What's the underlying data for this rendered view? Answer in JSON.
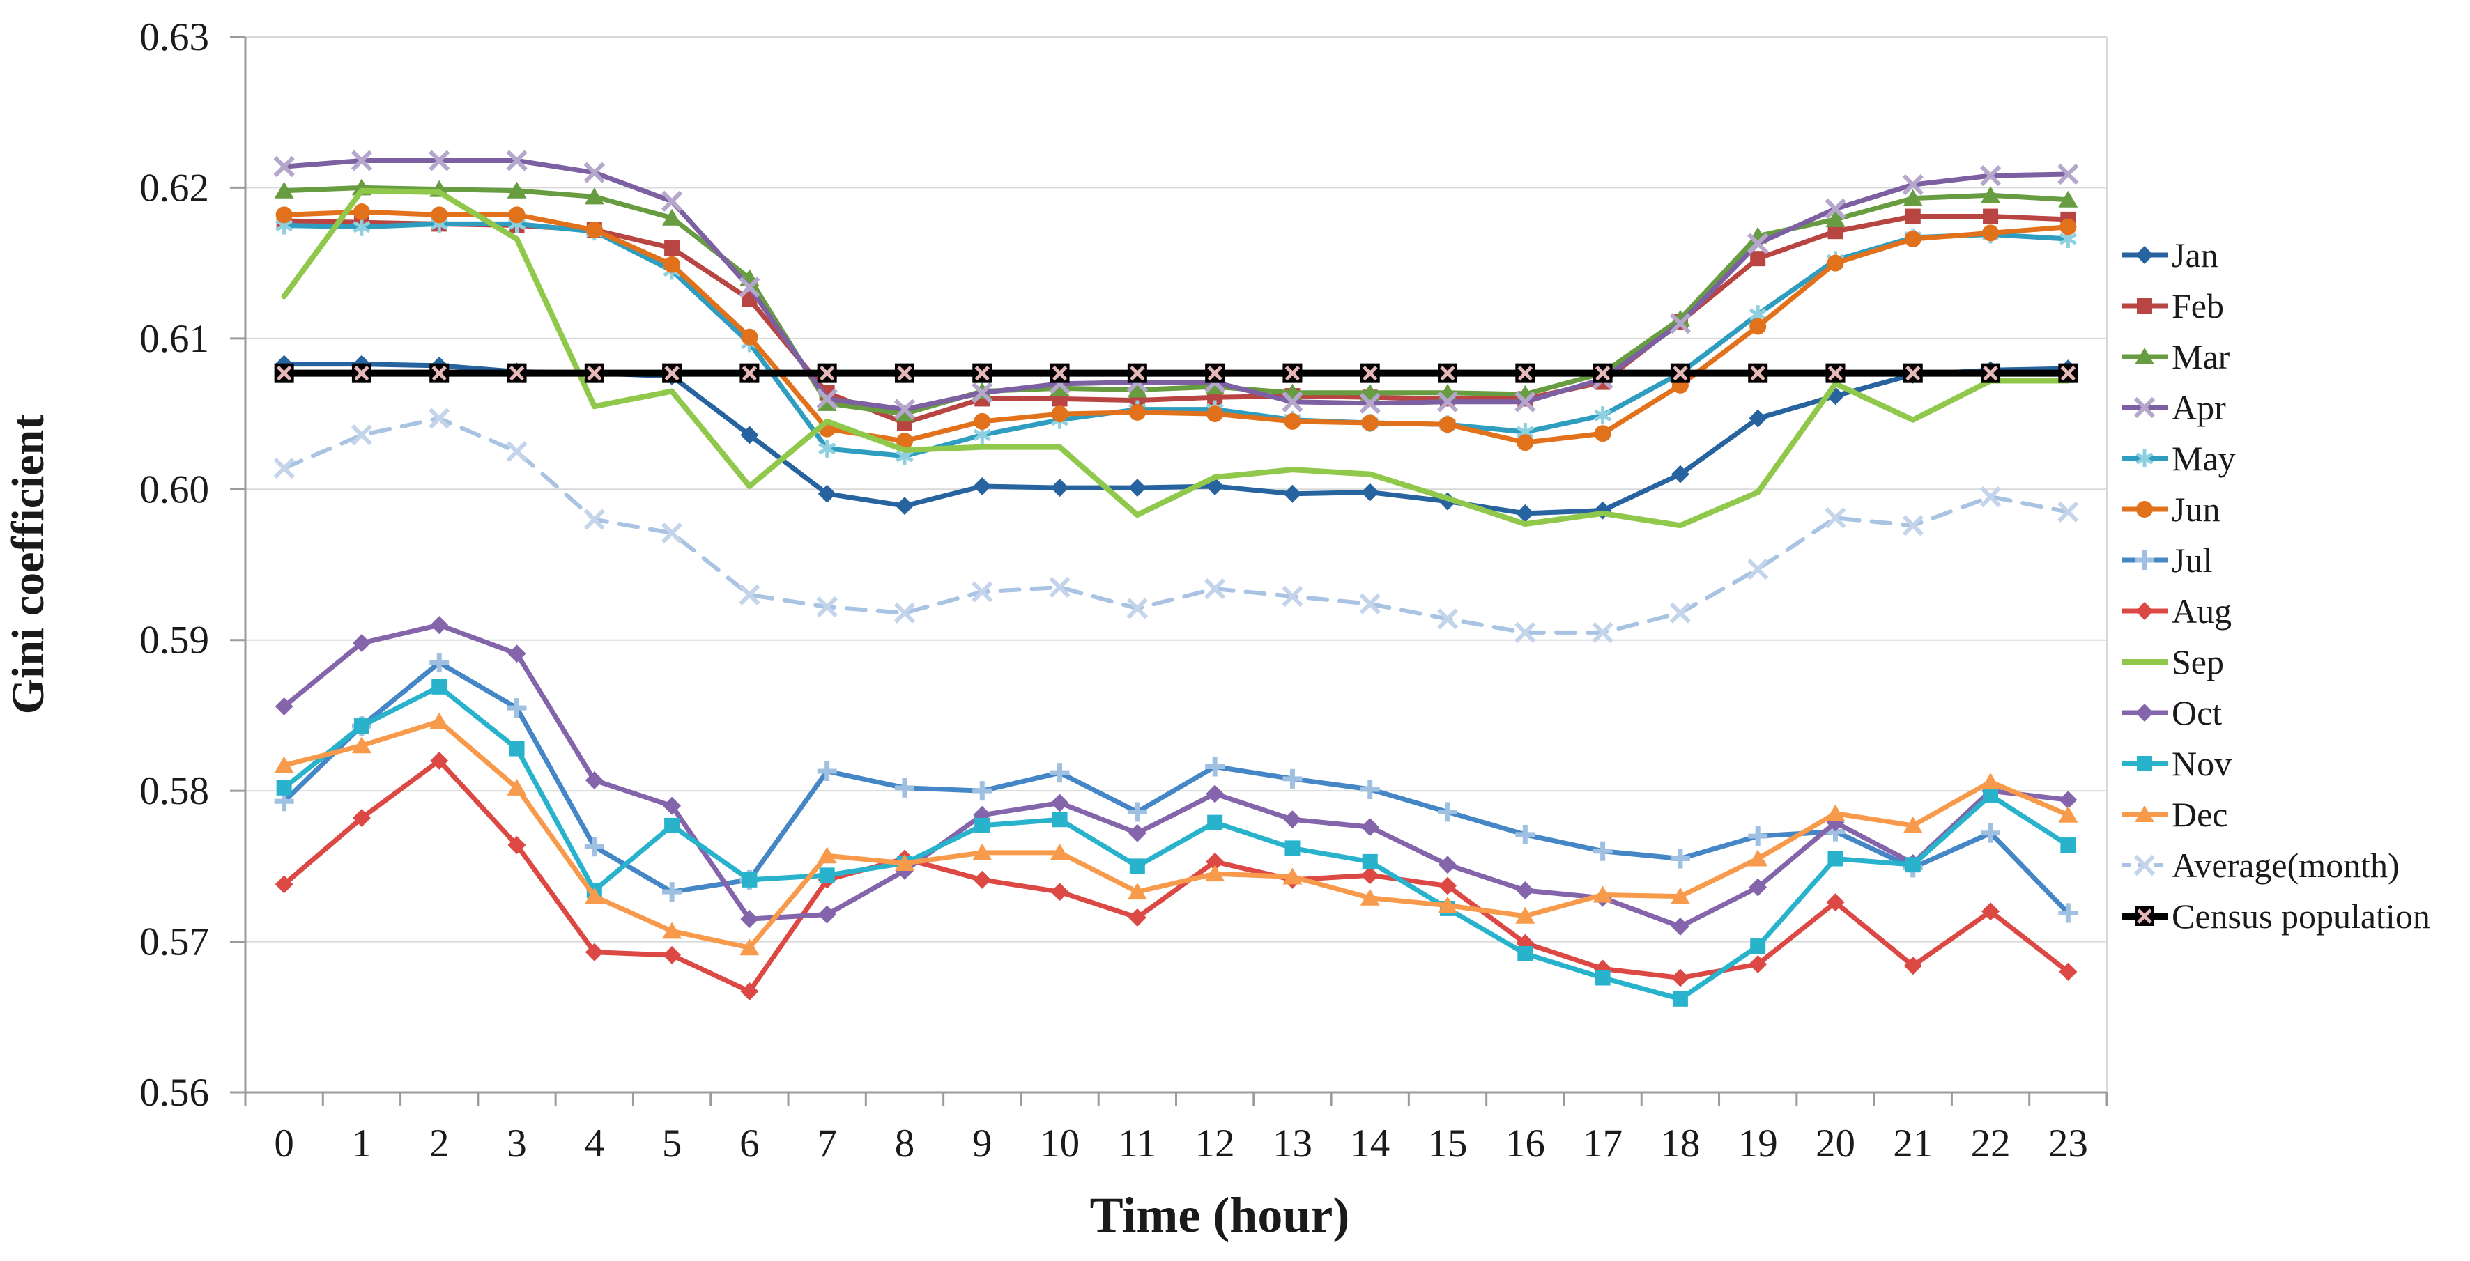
{
  "chart_data": {
    "type": "line",
    "title": "",
    "xlabel": "Time (hour)",
    "ylabel": "Gini coefficient",
    "x": [
      0,
      1,
      2,
      3,
      4,
      5,
      6,
      7,
      8,
      9,
      10,
      11,
      12,
      13,
      14,
      15,
      16,
      17,
      18,
      19,
      20,
      21,
      22,
      23
    ],
    "ylim": [
      0.56,
      0.63
    ],
    "yticks": [
      0.63,
      0.62,
      0.61,
      0.6,
      0.59,
      0.58,
      0.57,
      0.56
    ],
    "ytick_labels": [
      "0.63",
      "0.62",
      "0.61",
      "0.60",
      "0.59",
      "0.58",
      "0.57",
      "0.56"
    ],
    "grid": "horizontal",
    "legend_position": "right",
    "colors": {
      "gridline": "#d9d9d9",
      "axis": "#9b9b9b",
      "background": "#ffffff"
    },
    "series": [
      {
        "name": "Jan",
        "color": "#27639f",
        "marker": "diamond",
        "marker_color": "#27639f",
        "width": 7,
        "values": [
          0.6083,
          0.6083,
          0.6082,
          0.6078,
          0.6077,
          0.6075,
          0.6036,
          0.5997,
          0.5989,
          0.6002,
          0.6001,
          0.6001,
          0.6002,
          0.5997,
          0.5998,
          0.5992,
          0.5984,
          0.5986,
          0.601,
          0.6047,
          0.6062,
          0.6076,
          0.6079,
          0.608
        ]
      },
      {
        "name": "Feb",
        "color": "#b84542",
        "marker": "square",
        "marker_color": "#b84542",
        "width": 7,
        "values": [
          0.6178,
          0.6177,
          0.6176,
          0.6175,
          0.6172,
          0.616,
          0.6126,
          0.6064,
          0.6044,
          0.606,
          0.606,
          0.6059,
          0.6061,
          0.6062,
          0.6061,
          0.606,
          0.606,
          0.6071,
          0.6111,
          0.6153,
          0.6171,
          0.6181,
          0.6181,
          0.6179
        ]
      },
      {
        "name": "Mar",
        "color": "#679c40",
        "marker": "triangle",
        "marker_color": "#679c40",
        "width": 7,
        "values": [
          0.6198,
          0.62,
          0.6199,
          0.6198,
          0.6194,
          0.618,
          0.614,
          0.6057,
          0.605,
          0.6065,
          0.6067,
          0.6066,
          0.6068,
          0.6064,
          0.6064,
          0.6064,
          0.6063,
          0.6077,
          0.6113,
          0.6168,
          0.6179,
          0.6193,
          0.6195,
          0.6192
        ]
      },
      {
        "name": "Apr",
        "color": "#7c60a2",
        "marker": "x",
        "marker_color": "#b5a6cc",
        "width": 7,
        "values": [
          0.6214,
          0.6218,
          0.6218,
          0.6218,
          0.621,
          0.6191,
          0.6134,
          0.606,
          0.6053,
          0.6064,
          0.607,
          0.6071,
          0.6071,
          0.6058,
          0.6057,
          0.6058,
          0.6058,
          0.6073,
          0.611,
          0.6163,
          0.6186,
          0.6202,
          0.6208,
          0.6209
        ]
      },
      {
        "name": "May",
        "color": "#2e9dbf",
        "marker": "asterisk",
        "marker_color": "#8ed0e0",
        "width": 7,
        "values": [
          0.6175,
          0.6174,
          0.6176,
          0.6176,
          0.6171,
          0.6145,
          0.6097,
          0.6027,
          0.6022,
          0.6036,
          0.6046,
          0.6053,
          0.6053,
          0.6046,
          0.6044,
          0.6043,
          0.6038,
          0.6049,
          0.6077,
          0.6116,
          0.6152,
          0.6167,
          0.6169,
          0.6166
        ]
      },
      {
        "name": "Jun",
        "color": "#e2711b",
        "marker": "circle",
        "marker_color": "#e2711b",
        "width": 7,
        "values": [
          0.6182,
          0.6184,
          0.6182,
          0.6182,
          0.6172,
          0.6149,
          0.6101,
          0.604,
          0.6032,
          0.6045,
          0.605,
          0.6051,
          0.605,
          0.6045,
          0.6044,
          0.6043,
          0.6031,
          0.6037,
          0.6069,
          0.6108,
          0.615,
          0.6166,
          0.617,
          0.6174
        ]
      },
      {
        "name": "Jul",
        "color": "#4486c6",
        "marker": "plus",
        "marker_color": "#9fc0e0",
        "width": 7,
        "values": [
          0.5793,
          0.5843,
          0.5885,
          0.5855,
          0.5763,
          0.5733,
          0.5741,
          0.5813,
          0.5802,
          0.58,
          0.5812,
          0.5786,
          0.5816,
          0.5808,
          0.5801,
          0.5786,
          0.5771,
          0.576,
          0.5755,
          0.577,
          0.5773,
          0.5749,
          0.5772,
          0.5719
        ]
      },
      {
        "name": "Aug",
        "color": "#dc4844",
        "marker": "diamond",
        "marker_color": "#dc4844",
        "width": 7,
        "values": [
          0.5738,
          0.5782,
          0.582,
          0.5764,
          0.5693,
          0.5691,
          0.5667,
          0.5741,
          0.5755,
          0.5741,
          0.5733,
          0.5716,
          0.5753,
          0.5741,
          0.5744,
          0.5737,
          0.5699,
          0.5682,
          0.5676,
          0.5685,
          0.5726,
          0.5684,
          0.572,
          0.568
        ]
      },
      {
        "name": "Sep",
        "color": "#90c84c",
        "marker": "none",
        "marker_color": "#90c84c",
        "width": 8,
        "values": [
          0.6128,
          0.6198,
          0.6197,
          0.6166,
          0.6055,
          0.6065,
          0.6002,
          0.6045,
          0.6026,
          0.6028,
          0.6028,
          0.5983,
          0.6008,
          0.6013,
          0.601,
          0.5994,
          0.5977,
          0.5984,
          0.5976,
          0.5998,
          0.607,
          0.6046,
          0.6072,
          0.6072
        ]
      },
      {
        "name": "Oct",
        "color": "#8465ab",
        "marker": "diamond",
        "marker_color": "#8465ab",
        "width": 7,
        "values": [
          0.5856,
          0.5898,
          0.591,
          0.5891,
          0.5807,
          0.579,
          0.5715,
          0.5718,
          0.5747,
          0.5784,
          0.5792,
          0.5772,
          0.5798,
          0.5781,
          0.5776,
          0.5751,
          0.5734,
          0.5729,
          0.571,
          0.5736,
          0.5779,
          0.5752,
          0.58,
          0.5794
        ]
      },
      {
        "name": "Nov",
        "color": "#28b2cb",
        "marker": "square",
        "marker_color": "#28b2cb",
        "width": 7,
        "values": [
          0.5802,
          0.5843,
          0.5869,
          0.5828,
          0.5734,
          0.5777,
          0.5741,
          0.5744,
          0.5752,
          0.5777,
          0.5781,
          0.575,
          0.5779,
          0.5762,
          0.5753,
          0.5722,
          0.5692,
          0.5676,
          0.5662,
          0.5697,
          0.5755,
          0.5751,
          0.5797,
          0.5764
        ]
      },
      {
        "name": "Dec",
        "color": "#f89a4b",
        "marker": "triangle",
        "marker_color": "#f89a4b",
        "width": 7,
        "values": [
          0.5817,
          0.583,
          0.5846,
          0.5802,
          0.573,
          0.5707,
          0.5696,
          0.5757,
          0.5752,
          0.5759,
          0.5759,
          0.5733,
          0.5745,
          0.5743,
          0.5729,
          0.5724,
          0.5717,
          0.5731,
          0.573,
          0.5755,
          0.5785,
          0.5777,
          0.5806,
          0.5784
        ]
      },
      {
        "name": "Average(month)",
        "color": "#a9c3e3",
        "marker": "x",
        "marker_color": "#c3d4eb",
        "width": 6,
        "dash": [
          27,
          18
        ],
        "values": [
          0.6014,
          0.6036,
          0.6047,
          0.6025,
          0.598,
          0.5971,
          0.593,
          0.5922,
          0.5918,
          0.5932,
          0.5935,
          0.5921,
          0.5934,
          0.5929,
          0.5924,
          0.5914,
          0.5905,
          0.5905,
          0.5918,
          0.5947,
          0.5981,
          0.5976,
          0.5995,
          0.5985
        ]
      },
      {
        "name": "Census population",
        "color": "#000000",
        "marker": "boxx",
        "marker_color": "#e6b9b8",
        "width": 10,
        "values": [
          0.6077,
          0.6077,
          0.6077,
          0.6077,
          0.6077,
          0.6077,
          0.6077,
          0.6077,
          0.6077,
          0.6077,
          0.6077,
          0.6077,
          0.6077,
          0.6077,
          0.6077,
          0.6077,
          0.6077,
          0.6077,
          0.6077,
          0.6077,
          0.6077,
          0.6077,
          0.6077,
          0.6077
        ]
      }
    ]
  }
}
